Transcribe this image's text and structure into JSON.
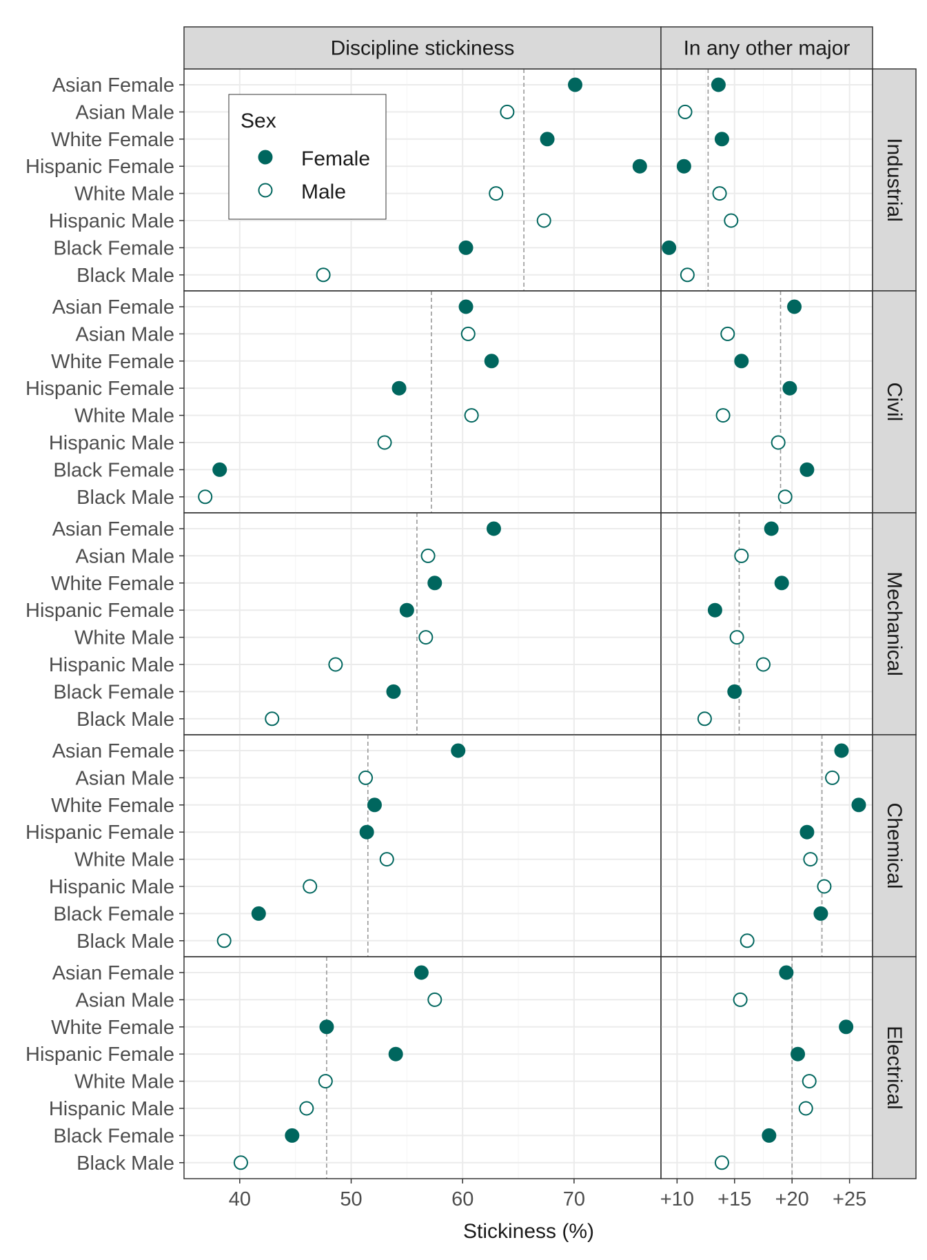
{
  "chart_data": {
    "type": "scatter",
    "xlabel": "Stickiness (%)",
    "ylabel": "",
    "columns": [
      {
        "label": "Discipline stickiness",
        "xlim": [
          35,
          77.8
        ],
        "ticks": [
          40,
          50,
          60,
          70
        ],
        "tick_labels": [
          "40",
          "50",
          "60",
          "70"
        ]
      },
      {
        "label": "In any other major",
        "xlim": [
          8.6,
          27
        ],
        "ticks": [
          10,
          15,
          20,
          25
        ],
        "tick_labels": [
          "+10",
          "+15",
          "+20",
          "+25"
        ]
      }
    ],
    "groups": [
      "Asian Female",
      "Asian Male",
      "White Female",
      "Hispanic Female",
      "White Male",
      "Hispanic Male",
      "Black Female",
      "Black Male"
    ],
    "group_sex": [
      "Female",
      "Male",
      "Female",
      "Female",
      "Male",
      "Male",
      "Female",
      "Male"
    ],
    "legend": {
      "title": "Sex",
      "entries": [
        "Female",
        "Male"
      ],
      "position": "inside-top-left"
    },
    "colors": {
      "female_fill": "#00665e",
      "male_fill": "#ffffff",
      "point_stroke": "#00665e",
      "strip_bg": "#d9d9d9",
      "grid": "#ebebeb",
      "ref_line": "#999999"
    },
    "grid": true,
    "panels": [
      {
        "label": "Industrial",
        "discipline": [
          70.1,
          64.0,
          67.6,
          75.9,
          63.0,
          67.3,
          60.3,
          47.5
        ],
        "discipline_ref": 65.5,
        "other": [
          13.6,
          10.7,
          13.9,
          10.6,
          13.7,
          14.7,
          9.3,
          10.9
        ],
        "other_ref": 12.7
      },
      {
        "label": "Civil",
        "discipline": [
          60.3,
          60.5,
          62.6,
          54.3,
          60.8,
          53.0,
          38.2,
          36.9
        ],
        "discipline_ref": 57.2,
        "other": [
          20.2,
          14.4,
          15.6,
          19.8,
          14.0,
          18.8,
          21.3,
          19.4
        ],
        "other_ref": 19.0
      },
      {
        "label": "Mechanical",
        "discipline": [
          62.8,
          56.9,
          57.5,
          55.0,
          56.7,
          48.6,
          53.8,
          42.9
        ],
        "discipline_ref": 55.9,
        "other": [
          18.2,
          15.6,
          19.1,
          13.3,
          15.2,
          17.5,
          15.0,
          12.4
        ],
        "other_ref": 15.4
      },
      {
        "label": "Chemical",
        "discipline": [
          59.6,
          51.3,
          52.1,
          51.4,
          53.2,
          46.3,
          41.7,
          38.6
        ],
        "discipline_ref": 51.5,
        "other": [
          24.3,
          23.5,
          25.8,
          21.3,
          21.6,
          22.8,
          22.5,
          16.1
        ],
        "other_ref": 22.6
      },
      {
        "label": "Electrical",
        "discipline": [
          56.3,
          57.5,
          47.8,
          54.0,
          47.7,
          46.0,
          44.7,
          40.1
        ],
        "discipline_ref": 47.8,
        "other": [
          19.5,
          15.5,
          24.7,
          20.5,
          21.5,
          21.2,
          18.0,
          13.9
        ],
        "other_ref": 20.0
      }
    ]
  }
}
